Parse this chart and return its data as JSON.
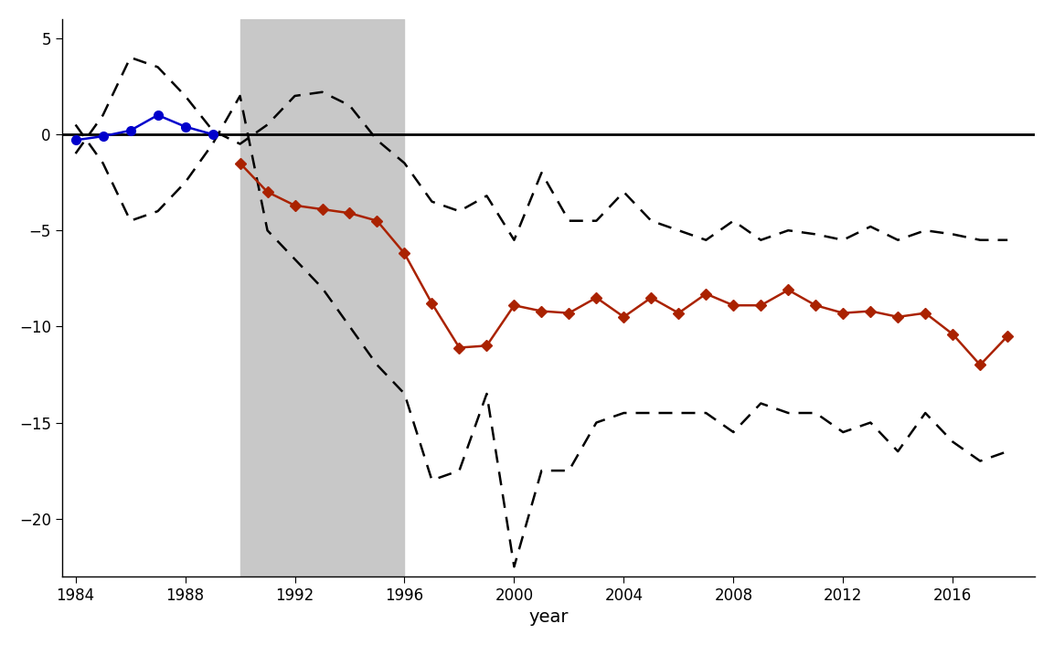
{
  "background_color": "#ffffff",
  "shaded_region": [
    1990,
    1996
  ],
  "shaded_color": "#c8c8c8",
  "zero_line_color": "#000000",
  "blue_line_color": "#0000cc",
  "red_line_color": "#aa2200",
  "dashed_line_color": "#000000",
  "blue_years": [
    1984,
    1985,
    1986,
    1987,
    1988,
    1989
  ],
  "blue_values": [
    -0.3,
    -0.1,
    0.2,
    1.0,
    0.4,
    0.0
  ],
  "red_years": [
    1990,
    1991,
    1992,
    1993,
    1994,
    1995,
    1996,
    1997,
    1998,
    1999,
    2000,
    2001,
    2002,
    2003,
    2004,
    2005,
    2006,
    2007,
    2008,
    2009,
    2010,
    2011,
    2012,
    2013,
    2014,
    2015,
    2016,
    2017,
    2018
  ],
  "red_values": [
    -1.5,
    -3.0,
    -3.7,
    -3.9,
    -4.1,
    -4.5,
    -6.2,
    -8.8,
    -11.1,
    -11.0,
    -8.9,
    -9.2,
    -9.3,
    -8.5,
    -9.5,
    -8.5,
    -9.3,
    -8.3,
    -8.9,
    -8.9,
    -8.1,
    -8.9,
    -9.3,
    -9.2,
    -9.5,
    -9.3,
    -10.4,
    -12.0,
    -10.5
  ],
  "upper_dashed_years": [
    1984,
    1985,
    1986,
    1987,
    1988,
    1989,
    1990,
    1991,
    1992,
    1993,
    1994,
    1995,
    1996,
    1997,
    1998,
    1999,
    2000,
    2001,
    2002,
    2003,
    2004,
    2005,
    2006,
    2007,
    2008,
    2009,
    2010,
    2011,
    2012,
    2013,
    2014,
    2015,
    2016,
    2017,
    2018
  ],
  "upper_dashed_values": [
    -1.0,
    1.0,
    4.0,
    3.5,
    2.0,
    0.2,
    -0.5,
    0.5,
    2.0,
    2.2,
    1.5,
    -0.3,
    -1.5,
    -3.5,
    -4.0,
    -3.2,
    -5.5,
    -2.0,
    -4.5,
    -4.5,
    -3.0,
    -4.5,
    -5.0,
    -5.5,
    -4.5,
    -5.5,
    -5.0,
    -5.2,
    -5.5,
    -4.8,
    -5.5,
    -5.0,
    -5.2,
    -5.5,
    -5.5
  ],
  "lower_dashed_years": [
    1984,
    1985,
    1986,
    1987,
    1988,
    1989,
    1990,
    1991,
    1992,
    1993,
    1994,
    1995,
    1996,
    1997,
    1998,
    1999,
    2000,
    2001,
    2002,
    2003,
    2004,
    2005,
    2006,
    2007,
    2008,
    2009,
    2010,
    2011,
    2012,
    2013,
    2014,
    2015,
    2016,
    2017,
    2018
  ],
  "lower_dashed_values": [
    0.5,
    -1.5,
    -4.5,
    -4.0,
    -2.5,
    -0.5,
    2.0,
    -5.0,
    -6.5,
    -8.0,
    -10.0,
    -12.0,
    -13.5,
    -18.0,
    -17.5,
    -13.5,
    -22.5,
    -17.5,
    -17.5,
    -15.0,
    -14.5,
    -14.5,
    -14.5,
    -14.5,
    -15.5,
    -14.0,
    -14.5,
    -14.5,
    -15.5,
    -15.0,
    -16.5,
    -14.5,
    -16.0,
    -17.0,
    -16.5
  ],
  "xlabel": "year",
  "ylim": [
    -23,
    6
  ],
  "xlim": [
    1983.5,
    2019
  ],
  "yticks": [
    5,
    0,
    -5,
    -10,
    -15,
    -20
  ],
  "xticks": [
    1984,
    1988,
    1992,
    1996,
    2000,
    2004,
    2008,
    2012,
    2016
  ]
}
